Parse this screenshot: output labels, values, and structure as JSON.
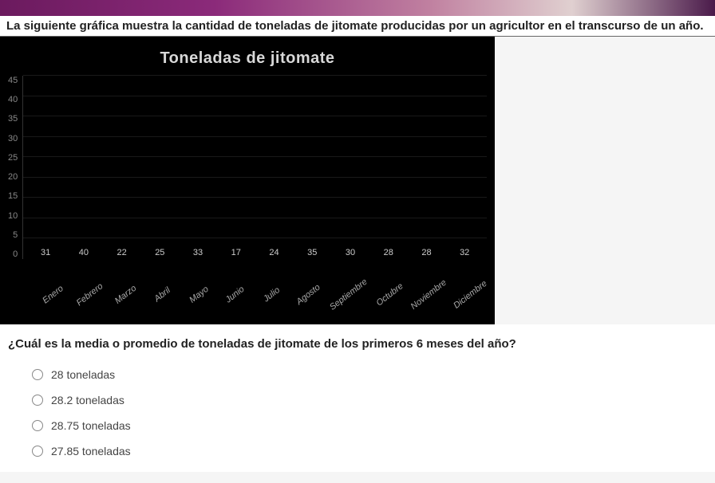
{
  "intro_text": "La siguiente gráfica muestra la cantidad de toneladas de jitomate producidas por un agricultor en el transcurso de un año.",
  "chart": {
    "type": "bar",
    "title": "Toneladas de jitomate",
    "title_color": "#d8d8d8",
    "title_fontsize": 20,
    "background_color": "#000000",
    "bar_color": "#7a3db8",
    "grid_color": "rgba(100,100,100,0.25)",
    "axis_label_color": "#888888",
    "value_label_color": "#cccccc",
    "ylim": [
      0,
      45
    ],
    "ytick_step": 5,
    "yticks": [
      "45",
      "40",
      "35",
      "30",
      "25",
      "20",
      "15",
      "10",
      "5",
      "0"
    ],
    "categories": [
      "Enero",
      "Febrero",
      "Marzo",
      "Abril",
      "Mayo",
      "Junio",
      "Julio",
      "Agosto",
      "Septiembre",
      "Octubre",
      "Noviembre",
      "Diciembre"
    ],
    "values": [
      31,
      40,
      22,
      25,
      33,
      17,
      24,
      35,
      30,
      28,
      28,
      32
    ],
    "bar_width": 0.62,
    "x_label_rotation": -38,
    "x_label_style": "italic",
    "label_fontsize": 11
  },
  "question_text": "¿Cuál es la media o promedio de toneladas de jitomate de los primeros 6 meses del año?",
  "options": [
    "28 toneladas",
    "28.2 toneladas",
    "28.75 toneladas",
    "27.85 toneladas"
  ]
}
